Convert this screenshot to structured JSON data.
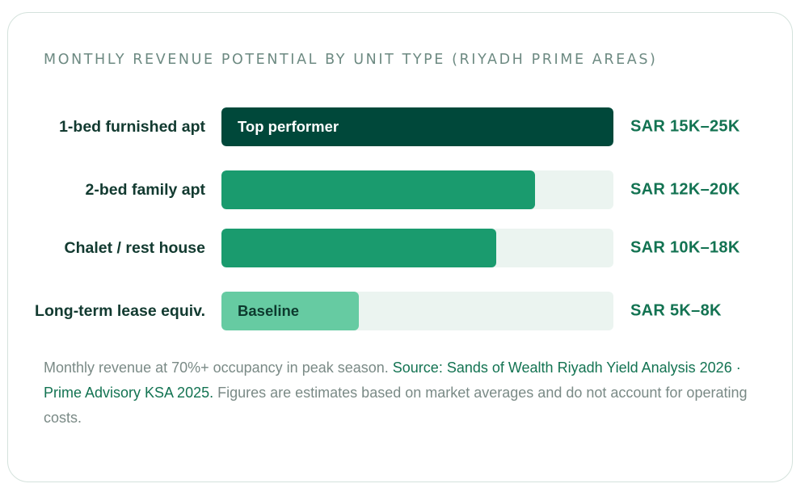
{
  "chart_data": {
    "type": "bar",
    "orientation": "horizontal",
    "title": "MONTHLY REVENUE POTENTIAL BY UNIT TYPE (RIYADH PRIME AREAS)",
    "categories": [
      "1-bed furnished apt",
      "2-bed family apt",
      "Chalet / rest house",
      "Long-term lease equiv."
    ],
    "values": [
      1.0,
      0.8,
      0.7,
      0.35
    ],
    "value_labels": [
      "SAR 15K–25K",
      "SAR 12K–20K",
      "SAR 10K–18K",
      "SAR 5K–8K"
    ],
    "bar_labels": [
      "Top performer",
      "",
      "",
      "Baseline"
    ],
    "xlim": [
      0,
      1
    ],
    "grid": false,
    "legend": "none"
  },
  "colors": {
    "top": "#00483a",
    "mid": "#1a9b6e",
    "baseline": "#66cba2",
    "track": "#ebf4f0",
    "top_label_text": "#ffffff",
    "baseline_label_text": "#0d3a2e"
  },
  "note": {
    "text_1": "Monthly revenue at 70%+ occupancy in peak season. ",
    "source": "Source: Sands of Wealth Riyadh Yield Analysis 2026 · Prime Advisory KSA 2025.",
    "text_2": " Figures are estimates based on market averages and do not account for operating costs."
  }
}
